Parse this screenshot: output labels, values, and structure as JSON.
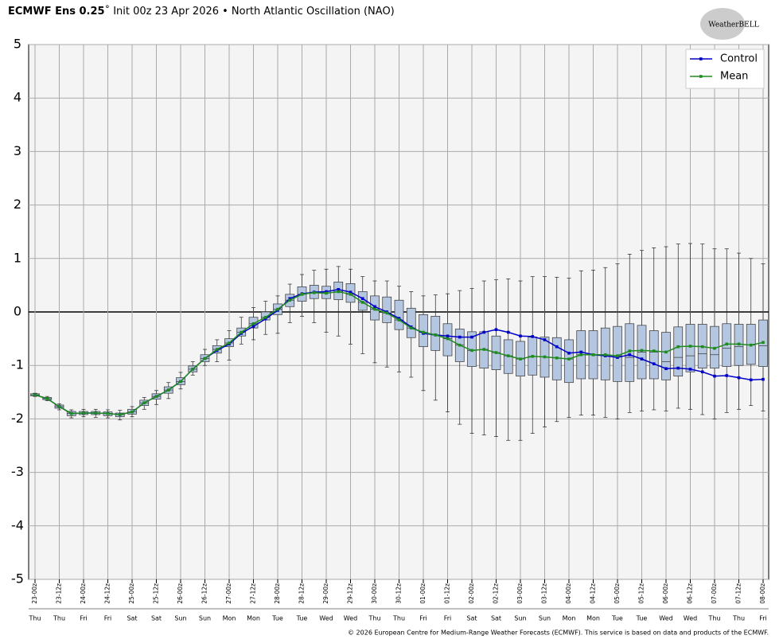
{
  "chart_data": {
    "type": "box",
    "title_bold": "ECMWF Ens 0.25",
    "title": "˚ Init 00z 23 Apr 2026 • North Atlantic Oscillation (NAO)",
    "logo": "WeatherBELL",
    "footer": "© 2026 European Centre for Medium-Range Weather Forecasts (ECMWF). This service is based on data and products of the ECMWF.",
    "categories": [
      "23-00z",
      null,
      "23-12z",
      null,
      "24-00z",
      null,
      "24-12z",
      null,
      "25-00z",
      null,
      "25-12z",
      null,
      "26-00z",
      null,
      "26-12z",
      null,
      "27-00z",
      null,
      "27-12z",
      null,
      "28-00z",
      null,
      "28-12z",
      null,
      "29-00z",
      null,
      "29-12z",
      null,
      "30-00z",
      null,
      "30-12z",
      null,
      "01-00z",
      null,
      "01-12z",
      null,
      "02-00z",
      null,
      "02-12z",
      null,
      "03-00z",
      null,
      "03-12z",
      null,
      "04-00z",
      null,
      "04-12z",
      null,
      "05-00z",
      null,
      "05-12z",
      null,
      "06-00z",
      null,
      "06-12z",
      null,
      "07-00z",
      null,
      "07-12z",
      null,
      "08-00z"
    ],
    "weekdays": [
      "Thu",
      null,
      "Thu",
      null,
      "Fri",
      null,
      "Fri",
      null,
      "Sat",
      null,
      "Sat",
      null,
      "Sun",
      null,
      "Sun",
      null,
      "Mon",
      null,
      "Mon",
      null,
      "Tue",
      null,
      "Tue",
      null,
      "Wed",
      null,
      "Wed",
      null,
      "Thu",
      null,
      "Thu",
      null,
      "Fri",
      null,
      "Fri",
      null,
      "Sat",
      null,
      "Sat",
      null,
      "Sun",
      null,
      "Sun",
      null,
      "Mon",
      null,
      "Mon",
      null,
      "Tue",
      null,
      "Tue",
      null,
      "Wed",
      null,
      "Wed",
      null,
      "Thu",
      null,
      "Thu",
      null,
      "Fri"
    ],
    "ylim": [
      -5,
      5
    ],
    "yticks": [
      -5,
      -4,
      -3,
      -2,
      -1,
      0,
      1,
      2,
      3,
      4,
      5
    ],
    "grid": true,
    "legend": "upper right",
    "box_color": "#b4c6e0",
    "boxes": {
      "min": [
        -1.58,
        -1.66,
        -1.83,
        -1.98,
        -1.96,
        -1.97,
        -1.98,
        -2.02,
        -1.96,
        -1.82,
        -1.73,
        -1.62,
        -1.44,
        -1.18,
        -1.0,
        -0.93,
        -0.9,
        -0.6,
        -0.52,
        -0.42,
        -0.4,
        -0.2,
        -0.08,
        -0.2,
        -0.38,
        -0.45,
        -0.6,
        -0.78,
        -0.95,
        -1.03,
        -1.12,
        -1.22,
        -1.47,
        -1.65,
        -1.87,
        -2.1,
        -2.27,
        -2.3,
        -2.33,
        -2.4,
        -2.4,
        -2.27,
        -2.15,
        -2.05,
        -1.97,
        -1.93,
        -1.93,
        -1.97,
        -2.0,
        -1.88,
        -1.85,
        -1.83,
        -1.85,
        -1.8,
        -1.82,
        -1.92,
        -2.0,
        -1.88,
        -1.82,
        -1.75,
        -1.85
      ],
      "q1": [
        -1.57,
        -1.64,
        -1.8,
        -1.94,
        -1.92,
        -1.92,
        -1.94,
        -1.96,
        -1.91,
        -1.75,
        -1.63,
        -1.52,
        -1.36,
        -1.12,
        -0.93,
        -0.77,
        -0.65,
        -0.45,
        -0.3,
        -0.15,
        -0.05,
        0.1,
        0.2,
        0.25,
        0.25,
        0.23,
        0.18,
        0.03,
        -0.15,
        -0.2,
        -0.33,
        -0.48,
        -0.65,
        -0.72,
        -0.82,
        -0.93,
        -1.02,
        -1.05,
        -1.08,
        -1.15,
        -1.2,
        -1.18,
        -1.22,
        -1.27,
        -1.32,
        -1.25,
        -1.25,
        -1.27,
        -1.3,
        -1.3,
        -1.25,
        -1.25,
        -1.27,
        -1.2,
        -1.12,
        -1.05,
        -1.05,
        -1.02,
        -1.0,
        -0.98,
        -1.02
      ],
      "median": [
        -1.55,
        -1.62,
        -1.77,
        -1.9,
        -1.89,
        -1.89,
        -1.9,
        -1.92,
        -1.87,
        -1.7,
        -1.58,
        -1.46,
        -1.3,
        -1.07,
        -0.87,
        -0.7,
        -0.58,
        -0.38,
        -0.22,
        -0.1,
        0.05,
        0.22,
        0.33,
        0.36,
        0.36,
        0.38,
        0.33,
        0.18,
        0.05,
        -0.02,
        -0.15,
        -0.3,
        -0.38,
        -0.43,
        -0.5,
        -0.62,
        -0.72,
        -0.7,
        -0.76,
        -0.82,
        -0.88,
        -0.83,
        -0.84,
        -0.86,
        -0.88,
        -0.8,
        -0.8,
        -0.8,
        -0.82,
        -0.85,
        -0.75,
        -0.75,
        -0.93,
        -0.85,
        -0.82,
        -0.78,
        -0.8,
        -0.68,
        -0.65,
        -0.62,
        -0.63
      ],
      "q3": [
        -1.53,
        -1.6,
        -1.74,
        -1.86,
        -1.86,
        -1.86,
        -1.87,
        -1.89,
        -1.82,
        -1.65,
        -1.53,
        -1.4,
        -1.23,
        -1.01,
        -0.8,
        -0.63,
        -0.5,
        -0.3,
        -0.1,
        0.0,
        0.15,
        0.33,
        0.47,
        0.5,
        0.48,
        0.56,
        0.53,
        0.38,
        0.3,
        0.28,
        0.22,
        0.07,
        -0.05,
        -0.08,
        -0.22,
        -0.32,
        -0.37,
        -0.37,
        -0.45,
        -0.52,
        -0.55,
        -0.47,
        -0.47,
        -0.48,
        -0.52,
        -0.35,
        -0.35,
        -0.3,
        -0.27,
        -0.22,
        -0.25,
        -0.35,
        -0.38,
        -0.28,
        -0.23,
        -0.23,
        -0.27,
        -0.22,
        -0.23,
        -0.23,
        -0.15
      ],
      "max": [
        -1.52,
        -1.58,
        -1.72,
        -1.83,
        -1.82,
        -1.82,
        -1.83,
        -1.84,
        -1.77,
        -1.6,
        -1.47,
        -1.32,
        -1.13,
        -0.93,
        -0.7,
        -0.52,
        -0.35,
        -0.1,
        0.08,
        0.2,
        0.3,
        0.52,
        0.7,
        0.78,
        0.8,
        0.85,
        0.8,
        0.66,
        0.58,
        0.58,
        0.48,
        0.38,
        0.3,
        0.32,
        0.34,
        0.4,
        0.44,
        0.58,
        0.6,
        0.62,
        0.58,
        0.66,
        0.66,
        0.65,
        0.63,
        0.77,
        0.78,
        0.83,
        0.9,
        1.08,
        1.15,
        1.2,
        1.22,
        1.27,
        1.28,
        1.27,
        1.18,
        1.18,
        1.1,
        1.0,
        0.9
      ]
    },
    "series": [
      {
        "name": "Control",
        "color": "#0000c8",
        "values": [
          -1.55,
          -1.62,
          -1.77,
          -1.9,
          -1.89,
          -1.89,
          -1.9,
          -1.92,
          -1.87,
          -1.7,
          -1.58,
          -1.46,
          -1.3,
          -1.07,
          -0.87,
          -0.72,
          -0.6,
          -0.4,
          -0.27,
          -0.13,
          0.03,
          0.25,
          0.34,
          0.37,
          0.38,
          0.42,
          0.37,
          0.25,
          0.1,
          0.0,
          -0.12,
          -0.28,
          -0.4,
          -0.43,
          -0.45,
          -0.47,
          -0.47,
          -0.38,
          -0.33,
          -0.38,
          -0.45,
          -0.46,
          -0.52,
          -0.65,
          -0.77,
          -0.75,
          -0.8,
          -0.82,
          -0.85,
          -0.8,
          -0.88,
          -0.97,
          -1.06,
          -1.05,
          -1.07,
          -1.12,
          -1.2,
          -1.19,
          -1.23,
          -1.27,
          -1.26
        ]
      },
      {
        "name": "Mean",
        "color": "#1e8c1e",
        "values": [
          -1.55,
          -1.62,
          -1.77,
          -1.9,
          -1.89,
          -1.89,
          -1.9,
          -1.92,
          -1.87,
          -1.7,
          -1.58,
          -1.46,
          -1.3,
          -1.07,
          -0.87,
          -0.7,
          -0.58,
          -0.38,
          -0.22,
          -0.1,
          0.05,
          0.22,
          0.33,
          0.36,
          0.35,
          0.38,
          0.33,
          0.18,
          0.05,
          -0.02,
          -0.15,
          -0.3,
          -0.38,
          -0.43,
          -0.5,
          -0.62,
          -0.72,
          -0.7,
          -0.76,
          -0.82,
          -0.88,
          -0.83,
          -0.84,
          -0.86,
          -0.88,
          -0.8,
          -0.8,
          -0.8,
          -0.82,
          -0.73,
          -0.72,
          -0.73,
          -0.75,
          -0.65,
          -0.64,
          -0.65,
          -0.68,
          -0.6,
          -0.6,
          -0.62,
          -0.57
        ]
      }
    ]
  }
}
